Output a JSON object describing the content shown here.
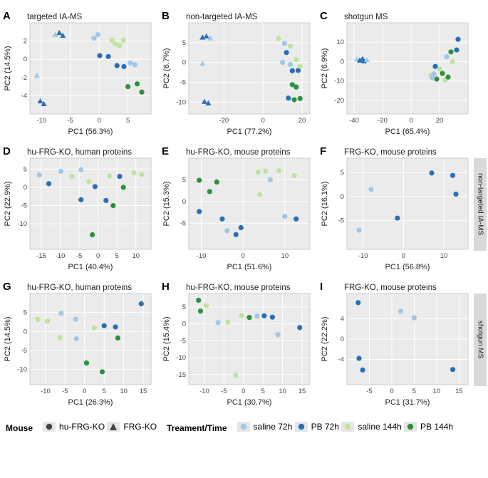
{
  "colors": {
    "panel_bg": "#ebebeb",
    "grid": "#ffffff",
    "saline72": "#a0c7e8",
    "pb72": "#2a6fb5",
    "saline144": "#bfe39e",
    "pb144": "#2f8f3f",
    "shape_marker": "#444444"
  },
  "marker": {
    "radius": 3.6,
    "tri_size": 8
  },
  "legend": {
    "mouse_label": "Mouse",
    "mouse_items": [
      {
        "shape": "circle",
        "label": "hu-FRG-KO"
      },
      {
        "shape": "triangle",
        "label": "FRG-KO"
      }
    ],
    "treat_label": "Treament/Time",
    "treat_items": [
      {
        "color_key": "saline72",
        "label": "saline 72h"
      },
      {
        "color_key": "pb72",
        "label": "PB 72h"
      },
      {
        "color_key": "saline144",
        "label": "saline 144h"
      },
      {
        "color_key": "pb144",
        "label": "PB 144h"
      }
    ]
  },
  "strips": {
    "row2": "non-targeted IA-MS",
    "row3": "shotgun MS"
  },
  "panels": [
    {
      "id": "A",
      "title": "targeted IA-MS",
      "xlabel": "PC1 (56.3%)",
      "ylabel": "PC2 (14.5%)",
      "xlim": [
        -12,
        9
      ],
      "ylim": [
        -6,
        4
      ],
      "xticks": [
        -10,
        -5,
        0,
        5
      ],
      "yticks": [
        -4,
        -2,
        0,
        2
      ],
      "points": [
        {
          "x": -10.2,
          "y": -4.6,
          "c": "pb72",
          "s": "triangle"
        },
        {
          "x": -9.6,
          "y": -4.9,
          "c": "pb72",
          "s": "triangle"
        },
        {
          "x": -10.8,
          "y": -1.8,
          "c": "saline72",
          "s": "triangle"
        },
        {
          "x": -7.6,
          "y": 2.7,
          "c": "saline72",
          "s": "triangle"
        },
        {
          "x": -6.9,
          "y": 2.9,
          "c": "pb72",
          "s": "triangle"
        },
        {
          "x": -6.3,
          "y": 2.6,
          "c": "pb72",
          "s": "triangle"
        },
        {
          "x": -0.9,
          "y": 2.3,
          "c": "saline72",
          "s": "circle"
        },
        {
          "x": -0.2,
          "y": 2.7,
          "c": "saline72",
          "s": "circle"
        },
        {
          "x": 0.1,
          "y": 0.4,
          "c": "pb72",
          "s": "circle"
        },
        {
          "x": 2.2,
          "y": 2.1,
          "c": "saline144",
          "s": "circle"
        },
        {
          "x": 2.8,
          "y": 1.7,
          "c": "saline144",
          "s": "circle"
        },
        {
          "x": 3.5,
          "y": 1.5,
          "c": "saline144",
          "s": "circle"
        },
        {
          "x": 4.2,
          "y": 2.1,
          "c": "saline144",
          "s": "circle"
        },
        {
          "x": 1.6,
          "y": 0.3,
          "c": "pb72",
          "s": "circle"
        },
        {
          "x": 3.1,
          "y": -0.7,
          "c": "pb72",
          "s": "circle"
        },
        {
          "x": 4.3,
          "y": -0.8,
          "c": "pb72",
          "s": "circle"
        },
        {
          "x": 5.4,
          "y": -0.4,
          "c": "saline72",
          "s": "circle"
        },
        {
          "x": 6.2,
          "y": -0.6,
          "c": "saline72",
          "s": "circle"
        },
        {
          "x": 5.0,
          "y": -3.0,
          "c": "pb144",
          "s": "circle"
        },
        {
          "x": 6.6,
          "y": -2.7,
          "c": "pb144",
          "s": "circle"
        },
        {
          "x": 7.4,
          "y": -3.6,
          "c": "pb144",
          "s": "circle"
        }
      ]
    },
    {
      "id": "B",
      "title": "non-targeted IA-MS",
      "xlabel": "PC1 (77.2%)",
      "ylabel": "PC2 (6.7%)",
      "xlim": [
        -38,
        24
      ],
      "ylim": [
        -13,
        10
      ],
      "xticks": [
        -20,
        0,
        20
      ],
      "yticks": [
        -10,
        -5,
        0,
        5
      ],
      "points": [
        {
          "x": -31,
          "y": 6.3,
          "c": "pb72",
          "s": "triangle"
        },
        {
          "x": -29,
          "y": 6.6,
          "c": "pb72",
          "s": "triangle"
        },
        {
          "x": -27,
          "y": 6.1,
          "c": "saline72",
          "s": "triangle"
        },
        {
          "x": -31,
          "y": -0.3,
          "c": "saline72",
          "s": "triangle"
        },
        {
          "x": -30,
          "y": -9.9,
          "c": "pb72",
          "s": "triangle"
        },
        {
          "x": -28,
          "y": -10.3,
          "c": "pb72",
          "s": "triangle"
        },
        {
          "x": 8,
          "y": 6.0,
          "c": "saline144",
          "s": "circle"
        },
        {
          "x": 11,
          "y": 4.8,
          "c": "saline72",
          "s": "circle"
        },
        {
          "x": 14,
          "y": 4.1,
          "c": "saline144",
          "s": "circle"
        },
        {
          "x": 12,
          "y": 2.5,
          "c": "pb72",
          "s": "circle"
        },
        {
          "x": 10,
          "y": 0.0,
          "c": "saline72",
          "s": "circle"
        },
        {
          "x": 14,
          "y": -0.5,
          "c": "saline72",
          "s": "circle"
        },
        {
          "x": 17,
          "y": 0.7,
          "c": "saline144",
          "s": "circle"
        },
        {
          "x": 15,
          "y": -2.1,
          "c": "pb72",
          "s": "circle"
        },
        {
          "x": 18,
          "y": -2.0,
          "c": "pb72",
          "s": "circle"
        },
        {
          "x": 19,
          "y": -1.0,
          "c": "saline144",
          "s": "circle"
        },
        {
          "x": 15,
          "y": -5.6,
          "c": "pb144",
          "s": "circle"
        },
        {
          "x": 17,
          "y": -6.2,
          "c": "pb144",
          "s": "circle"
        },
        {
          "x": 13,
          "y": -9.0,
          "c": "pb72",
          "s": "circle"
        },
        {
          "x": 16,
          "y": -9.4,
          "c": "pb144",
          "s": "circle"
        },
        {
          "x": 19,
          "y": -9.1,
          "c": "pb144",
          "s": "circle"
        }
      ]
    },
    {
      "id": "C",
      "title": "shotgun MS",
      "xlabel": "PC1 (65.4%)",
      "ylabel": "PC2 (6.9%)",
      "xlim": [
        -45,
        40
      ],
      "ylim": [
        -27,
        20
      ],
      "xticks": [
        -40,
        -20,
        0,
        20
      ],
      "yticks": [
        -20,
        -10,
        0,
        10
      ],
      "points": [
        {
          "x": -38,
          "y": 1.2,
          "c": "saline72",
          "s": "triangle"
        },
        {
          "x": -36,
          "y": 0.6,
          "c": "pb72",
          "s": "triangle"
        },
        {
          "x": -34,
          "y": 1.4,
          "c": "pb72",
          "s": "triangle"
        },
        {
          "x": -33,
          "y": 0.2,
          "c": "pb72",
          "s": "triangle"
        },
        {
          "x": -31,
          "y": 0.9,
          "c": "saline72",
          "s": "triangle"
        },
        {
          "x": 14,
          "y": -7.0,
          "c": "saline144",
          "s": "circle"
        },
        {
          "x": 16,
          "y": -6.4,
          "c": "saline72",
          "s": "circle"
        },
        {
          "x": 18,
          "y": -9.0,
          "c": "pb144",
          "s": "circle"
        },
        {
          "x": 22,
          "y": -6.1,
          "c": "pb144",
          "s": "circle"
        },
        {
          "x": 24,
          "y": -9.4,
          "c": "saline144",
          "s": "circle"
        },
        {
          "x": 17,
          "y": -2.5,
          "c": "pb72",
          "s": "circle"
        },
        {
          "x": 20,
          "y": -3.8,
          "c": "saline144",
          "s": "circle"
        },
        {
          "x": 25,
          "y": 2.5,
          "c": "saline72",
          "s": "circle"
        },
        {
          "x": 29,
          "y": 0.0,
          "c": "saline144",
          "s": "circle"
        },
        {
          "x": 28,
          "y": 5.0,
          "c": "pb144",
          "s": "circle"
        },
        {
          "x": 32,
          "y": 6.0,
          "c": "pb72",
          "s": "circle"
        },
        {
          "x": 33,
          "y": 11.5,
          "c": "pb72",
          "s": "circle"
        },
        {
          "x": 26,
          "y": -8.0,
          "c": "pb144",
          "s": "circle"
        },
        {
          "x": 15,
          "y": -8.5,
          "c": "saline72",
          "s": "circle"
        }
      ]
    },
    {
      "id": "D",
      "title": "hu-FRG-KO, human proteins",
      "xlabel": "PC1 (40.4%)",
      "ylabel": "PC2 (22.9%)",
      "xlim": [
        -18,
        14
      ],
      "ylim": [
        -17,
        8
      ],
      "xticks": [
        -15,
        -10,
        -5,
        0,
        5,
        10
      ],
      "yticks": [
        -10,
        -5,
        0,
        5
      ],
      "points": [
        {
          "x": -15.5,
          "y": 3.4,
          "c": "saline72",
          "s": "circle"
        },
        {
          "x": -13.0,
          "y": 1.0,
          "c": "pb72",
          "s": "circle"
        },
        {
          "x": -9.8,
          "y": 4.4,
          "c": "saline72",
          "s": "circle"
        },
        {
          "x": -6.9,
          "y": 3.0,
          "c": "saline144",
          "s": "circle"
        },
        {
          "x": -4.5,
          "y": 4.8,
          "c": "saline72",
          "s": "circle"
        },
        {
          "x": -2.4,
          "y": 1.6,
          "c": "saline144",
          "s": "circle"
        },
        {
          "x": -0.8,
          "y": 0.2,
          "c": "pb72",
          "s": "circle"
        },
        {
          "x": -4.5,
          "y": -3.4,
          "c": "pb72",
          "s": "circle"
        },
        {
          "x": 2.1,
          "y": -3.6,
          "c": "pb72",
          "s": "circle"
        },
        {
          "x": 3.0,
          "y": 3.1,
          "c": "saline144",
          "s": "circle"
        },
        {
          "x": 5.7,
          "y": 3.0,
          "c": "pb72",
          "s": "circle"
        },
        {
          "x": 6.7,
          "y": 0.0,
          "c": "pb144",
          "s": "circle"
        },
        {
          "x": 4.0,
          "y": -5.0,
          "c": "pb144",
          "s": "circle"
        },
        {
          "x": 9.5,
          "y": 4.0,
          "c": "saline144",
          "s": "circle"
        },
        {
          "x": 11.5,
          "y": 3.5,
          "c": "saline144",
          "s": "circle"
        },
        {
          "x": -1.5,
          "y": -13.0,
          "c": "pb144",
          "s": "circle"
        }
      ]
    },
    {
      "id": "E",
      "title": "hu-FRG-KO, mouse proteins",
      "xlabel": "PC1 (51.6%)",
      "ylabel": "PC2 (15.3%)",
      "xlim": [
        -13,
        16
      ],
      "ylim": [
        -11,
        10
      ],
      "xticks": [
        -10,
        0,
        10
      ],
      "yticks": [
        -5,
        0,
        5
      ],
      "points": [
        {
          "x": -10.5,
          "y": 4.9,
          "c": "pb144",
          "s": "circle"
        },
        {
          "x": -8.0,
          "y": 2.3,
          "c": "pb144",
          "s": "circle"
        },
        {
          "x": -6.3,
          "y": 4.5,
          "c": "pb144",
          "s": "circle"
        },
        {
          "x": -10.5,
          "y": -2.3,
          "c": "pb72",
          "s": "circle"
        },
        {
          "x": -5.0,
          "y": -4.0,
          "c": "pb72",
          "s": "circle"
        },
        {
          "x": -3.8,
          "y": -6.7,
          "c": "saline72",
          "s": "circle"
        },
        {
          "x": -1.7,
          "y": -7.6,
          "c": "pb72",
          "s": "circle"
        },
        {
          "x": -0.5,
          "y": -6.0,
          "c": "pb72",
          "s": "circle"
        },
        {
          "x": 3.6,
          "y": 6.8,
          "c": "saline144",
          "s": "circle"
        },
        {
          "x": 5.4,
          "y": 7.0,
          "c": "saline144",
          "s": "circle"
        },
        {
          "x": 8.6,
          "y": 7.1,
          "c": "saline144",
          "s": "circle"
        },
        {
          "x": 6.5,
          "y": 5.0,
          "c": "saline72",
          "s": "circle"
        },
        {
          "x": 4.0,
          "y": 1.6,
          "c": "saline144",
          "s": "circle"
        },
        {
          "x": 10.0,
          "y": -3.4,
          "c": "saline72",
          "s": "circle"
        },
        {
          "x": 12.7,
          "y": -4.0,
          "c": "pb72",
          "s": "circle"
        },
        {
          "x": 12.3,
          "y": 6.0,
          "c": "saline144",
          "s": "circle"
        }
      ]
    },
    {
      "id": "F",
      "title": "FRG-KO, mouse proteins",
      "xlabel": "PC1 (56.8%)",
      "ylabel": "PC2 (16.1%)",
      "xlim": [
        -14,
        16
      ],
      "ylim": [
        -11,
        8
      ],
      "xticks": [
        -10,
        0,
        10
      ],
      "yticks": [
        -5,
        0,
        5
      ],
      "points": [
        {
          "x": -11.0,
          "y": -7.0,
          "c": "saline72",
          "s": "circle"
        },
        {
          "x": -8.0,
          "y": 1.5,
          "c": "saline72",
          "s": "circle"
        },
        {
          "x": -1.5,
          "y": -4.5,
          "c": "pb72",
          "s": "circle"
        },
        {
          "x": 7.0,
          "y": 4.9,
          "c": "pb72",
          "s": "circle"
        },
        {
          "x": 13.0,
          "y": 0.5,
          "c": "pb72",
          "s": "circle"
        },
        {
          "x": 12.2,
          "y": 4.4,
          "c": "pb72",
          "s": "circle"
        }
      ]
    },
    {
      "id": "G",
      "title": "hu-FRG-KO, human proteins",
      "xlabel": "PC1 (26.3%)",
      "ylabel": "PC2 (14.5%)",
      "xlim": [
        -14,
        17
      ],
      "ylim": [
        -14,
        10
      ],
      "xticks": [
        -10,
        -5,
        0,
        5,
        10,
        15
      ],
      "yticks": [
        -10,
        -5,
        0,
        5
      ],
      "points": [
        {
          "x": -12.0,
          "y": 3.2,
          "c": "saline144",
          "s": "circle"
        },
        {
          "x": -9.5,
          "y": 2.7,
          "c": "saline144",
          "s": "circle"
        },
        {
          "x": -6.0,
          "y": 4.8,
          "c": "saline72",
          "s": "circle"
        },
        {
          "x": -6.3,
          "y": -1.6,
          "c": "saline144",
          "s": "circle"
        },
        {
          "x": -2.3,
          "y": 3.2,
          "c": "saline72",
          "s": "circle"
        },
        {
          "x": -2.1,
          "y": -1.9,
          "c": "saline72",
          "s": "circle"
        },
        {
          "x": 0.5,
          "y": -8.3,
          "c": "pb144",
          "s": "circle"
        },
        {
          "x": 2.5,
          "y": 1.0,
          "c": "saline144",
          "s": "circle"
        },
        {
          "x": 5.0,
          "y": 1.5,
          "c": "pb72",
          "s": "circle"
        },
        {
          "x": 7.9,
          "y": 1.2,
          "c": "pb72",
          "s": "circle"
        },
        {
          "x": 8.5,
          "y": -1.7,
          "c": "pb144",
          "s": "circle"
        },
        {
          "x": 4.5,
          "y": -10.6,
          "c": "pb144",
          "s": "circle"
        },
        {
          "x": 14.5,
          "y": 7.3,
          "c": "pb72",
          "s": "circle"
        }
      ]
    },
    {
      "id": "H",
      "title": "hu-FRG-KO, mouse proteins",
      "xlabel": "PC1 (30.7%)",
      "ylabel": "PC2 (15.4%)",
      "xlim": [
        -14,
        17
      ],
      "ylim": [
        -18,
        9
      ],
      "xticks": [
        -10,
        -5,
        0,
        5,
        10,
        15
      ],
      "yticks": [
        -15,
        -10,
        -5,
        0,
        5
      ],
      "points": [
        {
          "x": -11.5,
          "y": 7.0,
          "c": "pb144",
          "s": "circle"
        },
        {
          "x": -11.0,
          "y": 3.8,
          "c": "pb144",
          "s": "circle"
        },
        {
          "x": -9.5,
          "y": 5.4,
          "c": "saline144",
          "s": "circle"
        },
        {
          "x": -6.5,
          "y": 0.4,
          "c": "saline72",
          "s": "circle"
        },
        {
          "x": -4.0,
          "y": 0.5,
          "c": "saline144",
          "s": "circle"
        },
        {
          "x": -0.5,
          "y": 2.5,
          "c": "saline144",
          "s": "circle"
        },
        {
          "x": 1.5,
          "y": 1.9,
          "c": "pb144",
          "s": "circle"
        },
        {
          "x": 3.5,
          "y": 2.3,
          "c": "saline72",
          "s": "circle"
        },
        {
          "x": 5.3,
          "y": 2.4,
          "c": "pb72",
          "s": "circle"
        },
        {
          "x": 7.4,
          "y": 2.0,
          "c": "pb72",
          "s": "circle"
        },
        {
          "x": 14.4,
          "y": -1.1,
          "c": "pb72",
          "s": "circle"
        },
        {
          "x": -2.0,
          "y": -15.2,
          "c": "saline144",
          "s": "circle"
        },
        {
          "x": 8.8,
          "y": -3.2,
          "c": "saline72",
          "s": "circle"
        }
      ]
    },
    {
      "id": "I",
      "title": "FRG-KO, mouse proteins",
      "xlabel": "PC1 (31.7%)",
      "ylabel": "PC2 (22.2%)",
      "xlim": [
        -10,
        17
      ],
      "ylim": [
        -9,
        9
      ],
      "xticks": [
        -5,
        0,
        5,
        10,
        15
      ],
      "yticks": [
        -4,
        0,
        4
      ],
      "points": [
        {
          "x": -7.5,
          "y": 7.2,
          "c": "pb72",
          "s": "circle"
        },
        {
          "x": -7.3,
          "y": -3.8,
          "c": "pb72",
          "s": "circle"
        },
        {
          "x": -6.5,
          "y": -6.1,
          "c": "pb72",
          "s": "circle"
        },
        {
          "x": 2.0,
          "y": 5.5,
          "c": "saline72",
          "s": "circle"
        },
        {
          "x": 5.0,
          "y": 4.2,
          "c": "saline72",
          "s": "circle"
        },
        {
          "x": 13.6,
          "y": -6.0,
          "c": "pb72",
          "s": "circle"
        }
      ]
    }
  ]
}
